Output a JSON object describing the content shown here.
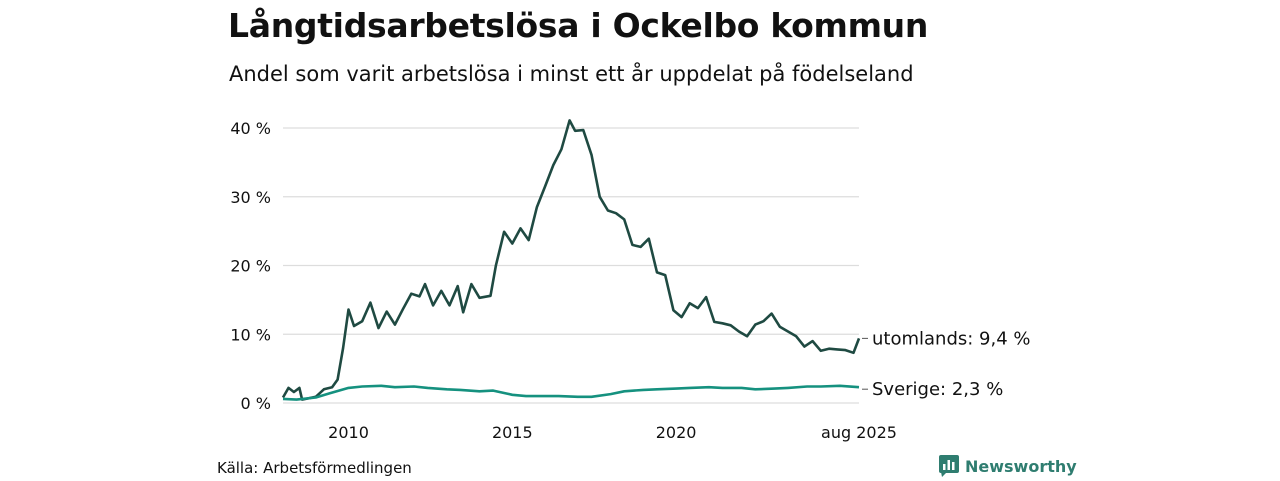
{
  "title": "Långtidsarbetslösa i Ockelbo kommun",
  "subtitle": "Andel som varit arbetslösa i minst ett år uppdelat på födelseland",
  "source": "Källa: Arbetsförmedlingen",
  "brand": "Newsworthy",
  "colors": {
    "utomlands": "#1f4a42",
    "sverige": "#15917f",
    "grid": "#dddddd",
    "brand": "#2f7d70"
  },
  "chart_data": {
    "type": "line",
    "title": "Långtidsarbetslösa i Ockelbo kommun",
    "subtitle": "Andel som varit arbetslösa i minst ett år uppdelat på födelseland",
    "xlabel": "",
    "ylabel": "",
    "xlim": [
      "2008-01",
      "2025-08"
    ],
    "ylim": [
      0,
      40
    ],
    "y_ticks": [
      0,
      10,
      20,
      30,
      40
    ],
    "y_tick_labels": [
      "0 %",
      "10 %",
      "20 %",
      "30 %",
      "40 %"
    ],
    "x_ticks": [
      "2010-01",
      "2015-01",
      "2020-01",
      "2025-08"
    ],
    "x_tick_labels": [
      "2010",
      "2015",
      "2020",
      "aug 2025"
    ],
    "grid": true,
    "series": [
      {
        "name": "utomlands",
        "end_label": "utomlands: 9,4 %",
        "color": "#1f4a42",
        "points": [
          [
            "2008-01",
            0.8
          ],
          [
            "2008-03",
            2.2
          ],
          [
            "2008-05",
            1.6
          ],
          [
            "2008-07",
            2.2
          ],
          [
            "2008-08",
            0.5
          ],
          [
            "2009-01",
            0.9
          ],
          [
            "2009-04",
            2.0
          ],
          [
            "2009-07",
            2.3
          ],
          [
            "2009-09",
            3.4
          ],
          [
            "2009-11",
            8.0
          ],
          [
            "2010-01",
            13.6
          ],
          [
            "2010-03",
            11.2
          ],
          [
            "2010-06",
            11.9
          ],
          [
            "2010-09",
            14.6
          ],
          [
            "2010-12",
            10.9
          ],
          [
            "2011-03",
            13.3
          ],
          [
            "2011-06",
            11.4
          ],
          [
            "2011-09",
            13.7
          ],
          [
            "2011-12",
            15.9
          ],
          [
            "2012-03",
            15.5
          ],
          [
            "2012-05",
            17.3
          ],
          [
            "2012-08",
            14.2
          ],
          [
            "2012-11",
            16.3
          ],
          [
            "2013-02",
            14.2
          ],
          [
            "2013-05",
            17.0
          ],
          [
            "2013-07",
            13.2
          ],
          [
            "2013-10",
            17.3
          ],
          [
            "2014-01",
            15.3
          ],
          [
            "2014-05",
            15.6
          ],
          [
            "2014-07",
            20.0
          ],
          [
            "2014-10",
            24.9
          ],
          [
            "2015-01",
            23.2
          ],
          [
            "2015-04",
            25.4
          ],
          [
            "2015-07",
            23.7
          ],
          [
            "2015-10",
            28.5
          ],
          [
            "2016-01",
            31.5
          ],
          [
            "2016-04",
            34.6
          ],
          [
            "2016-07",
            36.9
          ],
          [
            "2016-10",
            41.1
          ],
          [
            "2016-12",
            39.6
          ],
          [
            "2017-03",
            39.7
          ],
          [
            "2017-06",
            36.1
          ],
          [
            "2017-09",
            30.0
          ],
          [
            "2017-12",
            28.0
          ],
          [
            "2018-03",
            27.6
          ],
          [
            "2018-06",
            26.7
          ],
          [
            "2018-09",
            23.0
          ],
          [
            "2018-12",
            22.7
          ],
          [
            "2019-03",
            23.9
          ],
          [
            "2019-06",
            19.0
          ],
          [
            "2019-09",
            18.6
          ],
          [
            "2019-12",
            13.5
          ],
          [
            "2020-03",
            12.5
          ],
          [
            "2020-06",
            14.5
          ],
          [
            "2020-09",
            13.8
          ],
          [
            "2020-12",
            15.4
          ],
          [
            "2021-03",
            11.8
          ],
          [
            "2021-06",
            11.6
          ],
          [
            "2021-09",
            11.3
          ],
          [
            "2021-12",
            10.4
          ],
          [
            "2022-03",
            9.7
          ],
          [
            "2022-06",
            11.4
          ],
          [
            "2022-09",
            11.9
          ],
          [
            "2022-12",
            13.0
          ],
          [
            "2023-03",
            11.1
          ],
          [
            "2023-06",
            10.4
          ],
          [
            "2023-09",
            9.7
          ],
          [
            "2023-12",
            8.2
          ],
          [
            "2024-03",
            9.0
          ],
          [
            "2024-06",
            7.6
          ],
          [
            "2024-09",
            7.9
          ],
          [
            "2024-12",
            7.8
          ],
          [
            "2025-03",
            7.7
          ],
          [
            "2025-06",
            7.3
          ],
          [
            "2025-08",
            9.4
          ]
        ]
      },
      {
        "name": "Sverige",
        "end_label": "Sverige: 2,3 %",
        "color": "#15917f",
        "points": [
          [
            "2008-01",
            0.6
          ],
          [
            "2008-06",
            0.5
          ],
          [
            "2009-01",
            0.8
          ],
          [
            "2009-06",
            1.4
          ],
          [
            "2010-01",
            2.2
          ],
          [
            "2010-06",
            2.4
          ],
          [
            "2011-01",
            2.5
          ],
          [
            "2011-06",
            2.3
          ],
          [
            "2012-01",
            2.4
          ],
          [
            "2012-06",
            2.2
          ],
          [
            "2013-01",
            2.0
          ],
          [
            "2013-06",
            1.9
          ],
          [
            "2014-01",
            1.7
          ],
          [
            "2014-06",
            1.8
          ],
          [
            "2015-01",
            1.2
          ],
          [
            "2015-06",
            1.0
          ],
          [
            "2016-01",
            1.0
          ],
          [
            "2016-06",
            1.0
          ],
          [
            "2017-01",
            0.9
          ],
          [
            "2017-06",
            0.9
          ],
          [
            "2018-01",
            1.3
          ],
          [
            "2018-06",
            1.7
          ],
          [
            "2019-01",
            1.9
          ],
          [
            "2019-06",
            2.0
          ],
          [
            "2020-01",
            2.1
          ],
          [
            "2020-06",
            2.2
          ],
          [
            "2021-01",
            2.3
          ],
          [
            "2021-06",
            2.2
          ],
          [
            "2022-01",
            2.2
          ],
          [
            "2022-06",
            2.0
          ],
          [
            "2023-01",
            2.1
          ],
          [
            "2023-06",
            2.2
          ],
          [
            "2024-01",
            2.4
          ],
          [
            "2024-06",
            2.4
          ],
          [
            "2025-01",
            2.5
          ],
          [
            "2025-08",
            2.3
          ]
        ]
      }
    ]
  }
}
